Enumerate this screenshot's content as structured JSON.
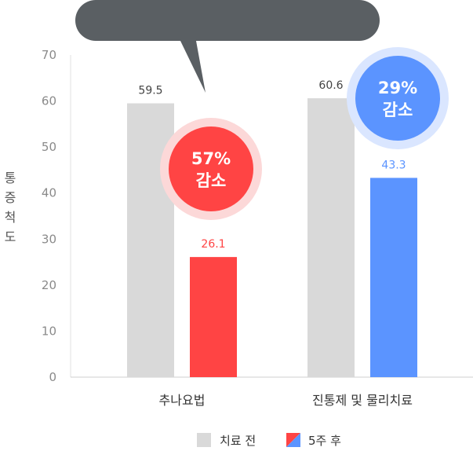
{
  "chart_data": {
    "type": "bar",
    "ylabel": "통증척도",
    "ylim": [
      0,
      70
    ],
    "yticks": [
      0,
      10,
      20,
      30,
      40,
      50,
      60,
      70
    ],
    "categories": [
      "추나요법",
      "진통제 및 물리치료"
    ],
    "series": [
      {
        "name": "치료 전",
        "values": [
          59.5,
          60.6
        ],
        "color": "#d9d9d9",
        "label_color": "#444444"
      },
      {
        "name": "5주 후",
        "values": [
          26.1,
          43.3
        ],
        "colors": [
          "#ff4444",
          "#5b94ff"
        ]
      }
    ],
    "annotations": [
      {
        "category": "추나요법",
        "line1": "57%",
        "line2": "감소",
        "color": "#ff4444",
        "halo": "#fcd8d8"
      },
      {
        "category": "진통제 및 물리치료",
        "line1": "29%",
        "line2": "감소",
        "color": "#5b94ff",
        "halo": "#dae6ff"
      }
    ],
    "grid": false,
    "legend_position": "bottom"
  }
}
